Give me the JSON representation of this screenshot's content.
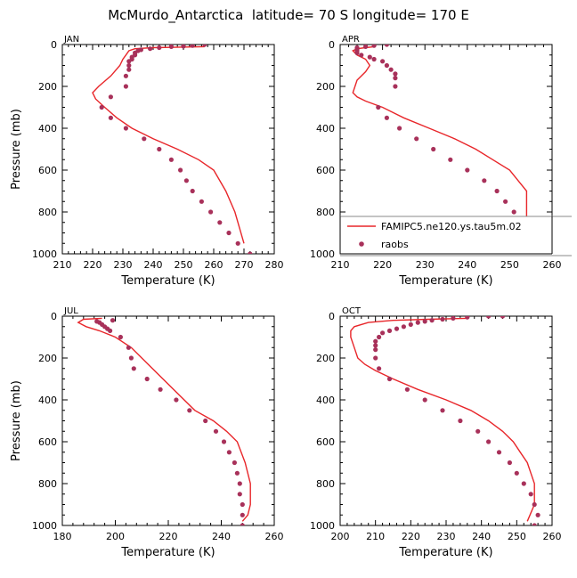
{
  "title": "McMurdo_Antarctica  latitude= 70 S longitude= 170 E",
  "legend": {
    "line_label": "FAMIPC5.ne120.ys.tau5m.02",
    "points_label": "raobs"
  },
  "colors": {
    "model": "#e8262a",
    "obs": "#a8315a"
  },
  "chart_data": [
    {
      "type": "line",
      "panel": "JAN",
      "xlabel": "Temperature (K)",
      "ylabel": "Pressure (mb)",
      "xlim": [
        210,
        280
      ],
      "ylim": [
        1000,
        0
      ],
      "y_reversed": true,
      "xticks": [
        210,
        220,
        230,
        240,
        250,
        260,
        270,
        280
      ],
      "yticks": [
        0,
        200,
        400,
        600,
        800,
        1000
      ],
      "model": {
        "x": [
          257,
          240,
          234,
          232,
          231,
          230,
          229,
          226,
          222,
          220,
          221,
          224,
          228,
          233,
          240,
          248,
          255,
          260,
          264,
          267,
          270
        ],
        "y": [
          10,
          15,
          20,
          30,
          50,
          70,
          100,
          150,
          200,
          230,
          260,
          300,
          350,
          400,
          450,
          500,
          550,
          600,
          700,
          800,
          950
        ]
      },
      "obs": {
        "x": [
          257,
          253,
          250,
          246,
          242,
          239,
          236,
          235,
          234,
          234,
          233,
          233,
          232,
          232,
          232,
          231,
          231,
          226,
          223,
          226,
          231,
          237,
          242,
          246,
          249,
          251,
          253,
          256,
          259,
          262,
          265,
          268,
          272
        ],
        "y": [
          0,
          5,
          8,
          10,
          15,
          20,
          25,
          30,
          40,
          50,
          60,
          70,
          80,
          100,
          120,
          150,
          200,
          250,
          300,
          350,
          400,
          450,
          500,
          550,
          600,
          650,
          700,
          750,
          800,
          850,
          900,
          950,
          1000
        ]
      }
    },
    {
      "type": "line",
      "panel": "APR",
      "xlabel": "Temperature (K)",
      "ylabel": "",
      "xlim": [
        210,
        260
      ],
      "ylim": [
        1000,
        0
      ],
      "y_reversed": true,
      "xticks": [
        210,
        220,
        230,
        240,
        250,
        260
      ],
      "yticks": [
        0,
        200,
        400,
        600,
        800,
        1000
      ],
      "model": {
        "x": [
          218,
          216,
          214,
          213,
          214,
          216,
          217,
          216,
          214,
          213,
          214,
          216,
          220,
          225,
          231,
          237,
          242,
          246,
          250,
          252,
          254,
          254,
          253
        ],
        "y": [
          10,
          15,
          20,
          30,
          50,
          70,
          100,
          130,
          170,
          230,
          250,
          270,
          300,
          350,
          400,
          450,
          500,
          550,
          600,
          650,
          700,
          850,
          980
        ]
      },
      "obs": {
        "x": [
          221,
          218,
          216,
          214,
          214,
          214,
          214,
          214,
          215,
          217,
          218,
          220,
          221,
          222,
          223,
          223,
          223,
          219,
          221,
          224,
          228,
          232,
          236,
          240,
          244,
          247,
          249,
          251,
          252,
          253,
          254,
          255
        ],
        "y": [
          0,
          5,
          10,
          15,
          20,
          25,
          30,
          40,
          50,
          60,
          70,
          80,
          100,
          120,
          140,
          160,
          200,
          300,
          350,
          400,
          450,
          500,
          550,
          600,
          650,
          700,
          750,
          800,
          850,
          900,
          950,
          1000
        ]
      },
      "legend_position": "lower-right"
    },
    {
      "type": "line",
      "panel": "JUL",
      "xlabel": "Temperature (K)",
      "ylabel": "Pressure (mb)",
      "xlim": [
        180,
        260
      ],
      "ylim": [
        1000,
        0
      ],
      "y_reversed": true,
      "xticks": [
        180,
        200,
        220,
        240,
        260
      ],
      "yticks": [
        0,
        200,
        400,
        600,
        800,
        1000
      ],
      "model": {
        "x": [
          195,
          188,
          186,
          189,
          194,
          200,
          206,
          214,
          222,
          230,
          237,
          242,
          246,
          249,
          251,
          251,
          250,
          248
        ],
        "y": [
          10,
          15,
          30,
          50,
          70,
          100,
          150,
          250,
          350,
          450,
          500,
          550,
          600,
          700,
          800,
          900,
          950,
          980
        ]
      },
      "obs": {
        "x": [
          199,
          193,
          194,
          195,
          196,
          197,
          198,
          202,
          205,
          206,
          207,
          212,
          217,
          223,
          228,
          234,
          238,
          241,
          243,
          245,
          246,
          247,
          247,
          248,
          248,
          248
        ],
        "y": [
          20,
          25,
          30,
          40,
          50,
          60,
          70,
          100,
          150,
          200,
          250,
          300,
          350,
          400,
          450,
          500,
          550,
          600,
          650,
          700,
          750,
          800,
          850,
          900,
          950,
          1000
        ]
      }
    },
    {
      "type": "line",
      "panel": "OCT",
      "xlabel": "Temperature (K)",
      "ylabel": "",
      "xlim": [
        200,
        260
      ],
      "ylim": [
        1000,
        0
      ],
      "y_reversed": true,
      "xticks": [
        200,
        210,
        220,
        230,
        240,
        250,
        260
      ],
      "yticks": [
        0,
        200,
        400,
        600,
        800,
        1000
      ],
      "model": {
        "x": [
          236,
          225,
          215,
          208,
          204,
          203,
          203,
          204,
          205,
          207,
          210,
          215,
          222,
          230,
          237,
          242,
          246,
          249,
          251,
          253,
          254,
          255,
          255,
          253
        ],
        "y": [
          10,
          15,
          20,
          30,
          50,
          70,
          100,
          150,
          200,
          230,
          260,
          300,
          350,
          400,
          450,
          500,
          550,
          600,
          650,
          700,
          750,
          800,
          900,
          980
        ]
      },
      "obs": {
        "x": [
          246,
          242,
          236,
          232,
          229,
          226,
          224,
          222,
          220,
          218,
          216,
          214,
          212,
          211,
          210,
          210,
          210,
          210,
          211,
          214,
          219,
          224,
          229,
          234,
          239,
          242,
          245,
          248,
          250,
          252,
          254,
          255,
          256,
          255
        ],
        "y": [
          0,
          0,
          5,
          10,
          15,
          20,
          25,
          30,
          40,
          50,
          60,
          70,
          80,
          100,
          120,
          140,
          160,
          200,
          250,
          300,
          350,
          400,
          450,
          500,
          550,
          600,
          650,
          700,
          750,
          800,
          850,
          900,
          950,
          1000
        ]
      }
    }
  ]
}
